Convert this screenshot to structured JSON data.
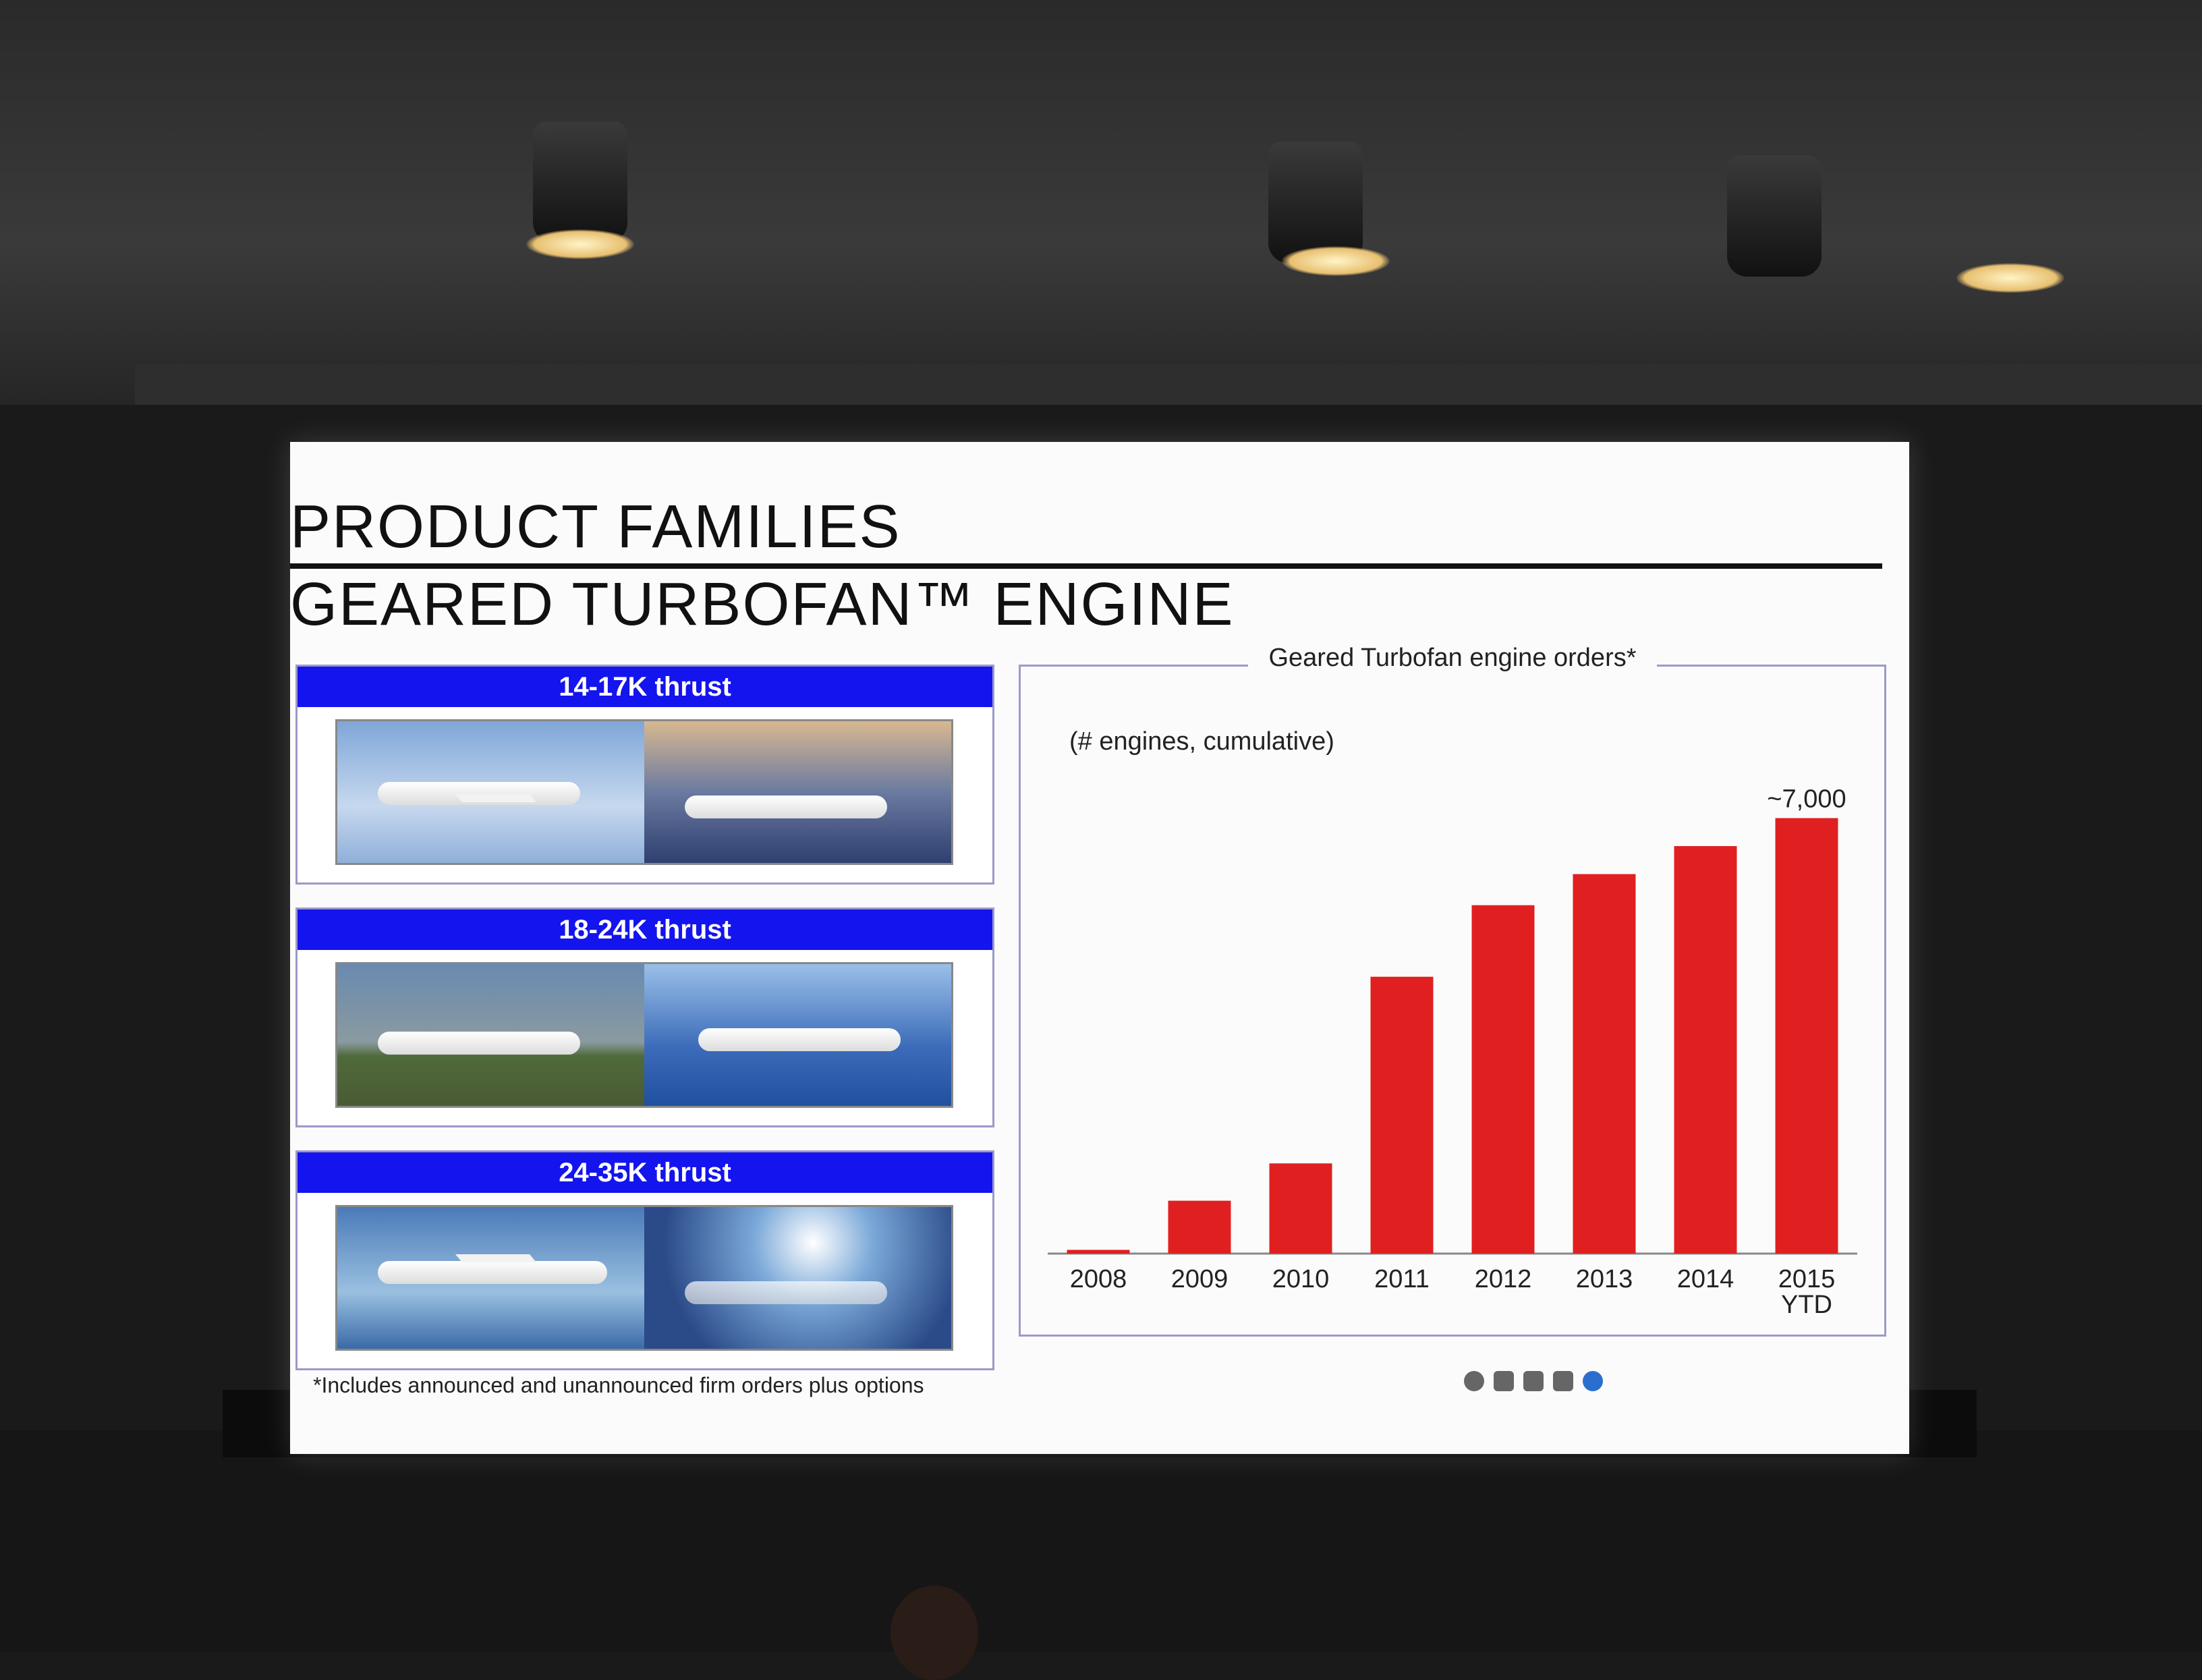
{
  "slide": {
    "title_line1": "PRODUCT FAMILIES",
    "title_line2": "GEARED TURBOFAN™ ENGINE",
    "footnote": "*Includes announced and unannounced firm orders plus options"
  },
  "families": [
    {
      "label": "14-17K thrust"
    },
    {
      "label": "18-24K thrust"
    },
    {
      "label": "24-35K thrust"
    }
  ],
  "chart_data": {
    "type": "bar",
    "title": "Geared Turbofan engine orders*",
    "subtitle": "(# engines, cumulative)",
    "categories": [
      "2008",
      "2009",
      "2010",
      "2011",
      "2012",
      "2013",
      "2014",
      "2015\nYTD"
    ],
    "values": [
      60,
      850,
      1450,
      4450,
      5600,
      6100,
      6550,
      7000
    ],
    "data_labels": {
      "7": "~7,000"
    },
    "ylim": [
      0,
      7700
    ],
    "grid": false,
    "bar_color": "#e02020"
  }
}
